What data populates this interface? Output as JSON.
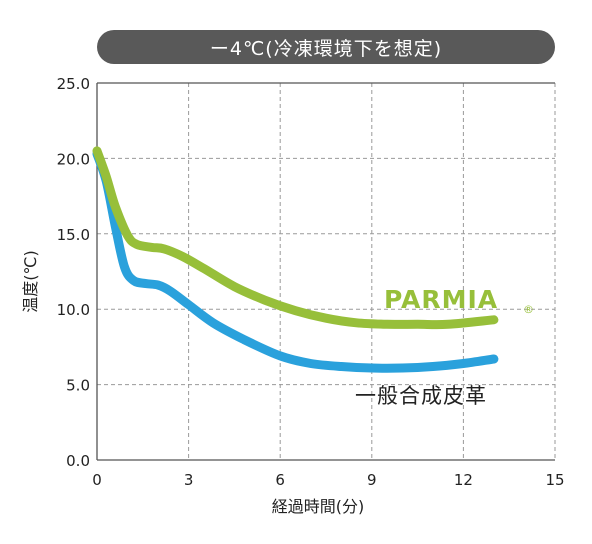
{
  "chart_data": {
    "type": "line",
    "title": "ー4℃(冷凍環境下を想定)",
    "xlabel": "経過時間(分)",
    "ylabel": "温度(℃)",
    "xlim": [
      0,
      15
    ],
    "ylim": [
      0,
      25
    ],
    "x_ticks": [
      "0",
      "3",
      "6",
      "9",
      "12",
      "15"
    ],
    "y_ticks": [
      "0.0",
      "5.0",
      "10.0",
      "15.0",
      "20.0",
      "25.0"
    ],
    "grid": true,
    "series": [
      {
        "name": "PARMIA",
        "registered_mark": "®",
        "color": "#97bf3a",
        "x": [
          0,
          0.3,
          0.6,
          1.0,
          1.3,
          1.8,
          2.2,
          2.8,
          3.5,
          4.5,
          5.5,
          6.5,
          7.5,
          8.5,
          9.5,
          10.5,
          11.5,
          13
        ],
        "y": [
          20.5,
          18.8,
          16.8,
          14.9,
          14.3,
          14.1,
          14.0,
          13.5,
          12.7,
          11.5,
          10.6,
          9.9,
          9.4,
          9.1,
          9.0,
          9.0,
          9.0,
          9.3
        ]
      },
      {
        "name": "一般合成皮革",
        "color": "#2aa1dc",
        "x": [
          0,
          0.3,
          0.6,
          0.9,
          1.2,
          1.6,
          2.0,
          2.4,
          3.0,
          3.8,
          4.8,
          6.0,
          7.0,
          8.0,
          9.0,
          10.0,
          11.0,
          12.0,
          13.0
        ],
        "y": [
          20.3,
          18.5,
          15.5,
          12.8,
          11.9,
          11.7,
          11.6,
          11.2,
          10.3,
          9.1,
          8.0,
          6.9,
          6.4,
          6.2,
          6.1,
          6.1,
          6.2,
          6.4,
          6.7
        ]
      }
    ]
  }
}
